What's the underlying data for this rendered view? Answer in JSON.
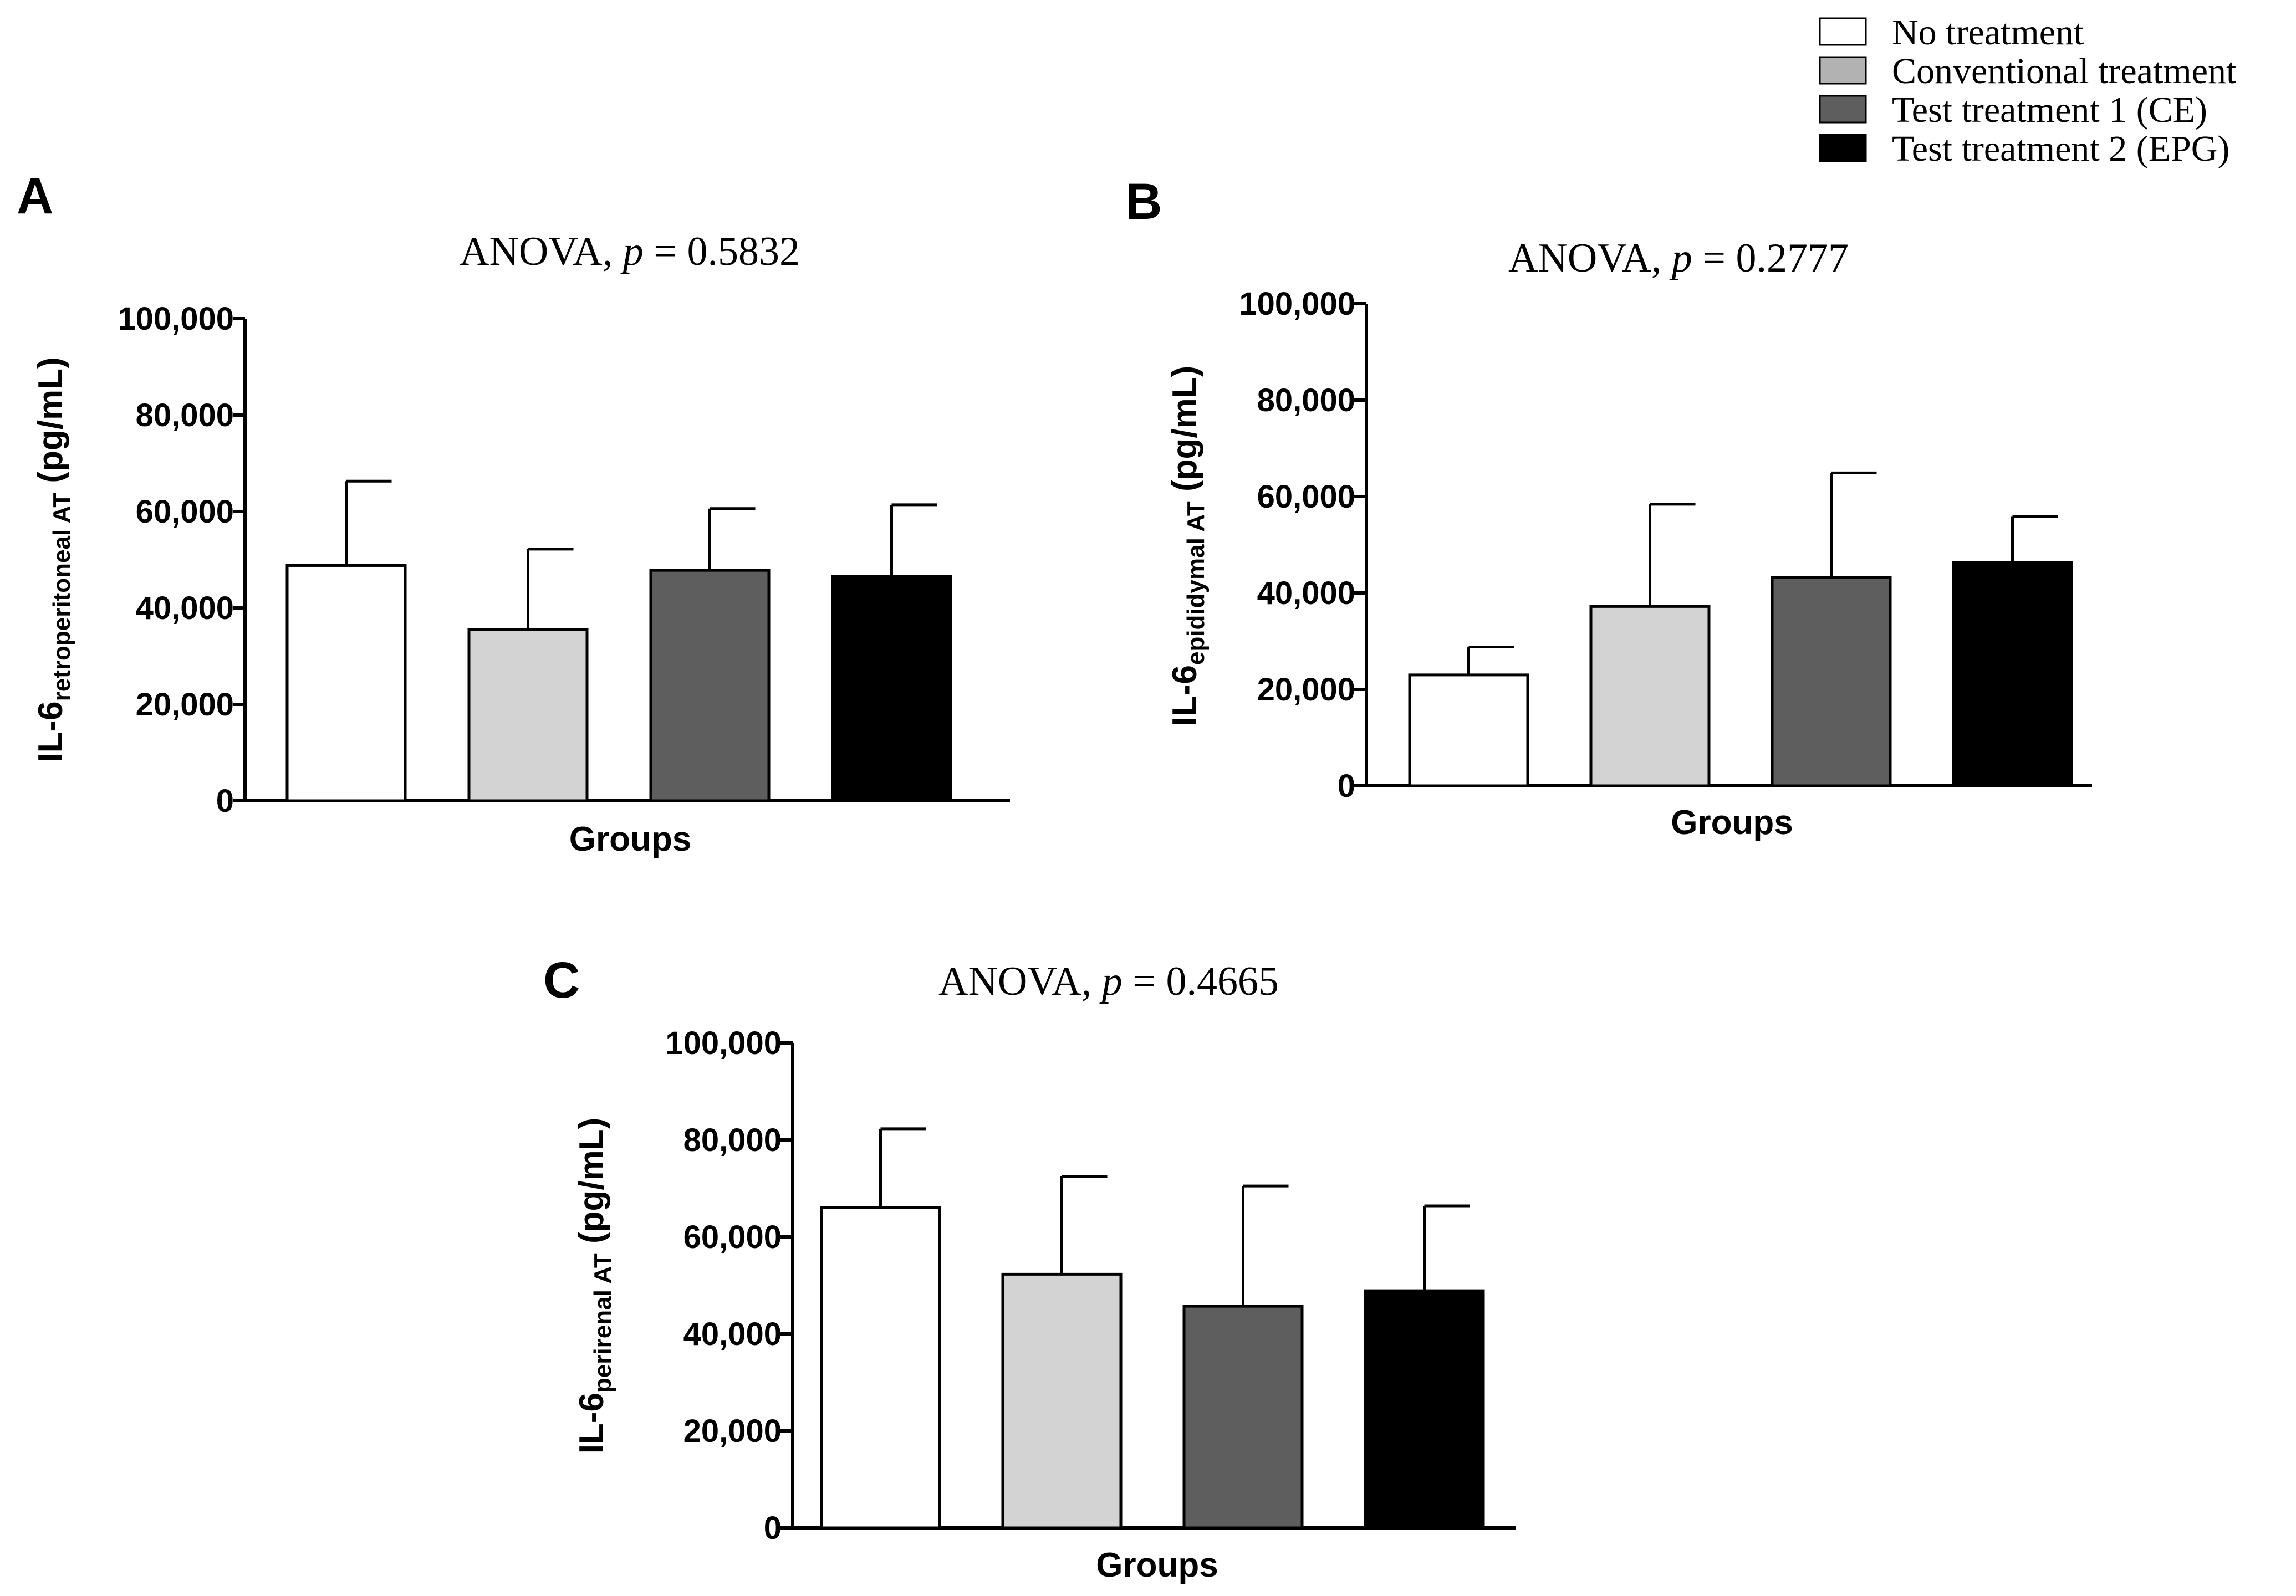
{
  "legend": {
    "items": [
      {
        "label": "No treatment",
        "color": "#ffffff"
      },
      {
        "label": "Conventional treatment",
        "color": "#b2b2b2"
      },
      {
        "label": "Test treatment 1 (CE)",
        "color": "#5e5e5e"
      },
      {
        "label": "Test treatment 2 (EPG)",
        "color": "#000000"
      }
    ]
  },
  "chart_data": [
    {
      "type": "bar",
      "panel": "A",
      "title_prefix": "ANOVA,",
      "title_p": "p",
      "title_value": "= 0.5832",
      "ylabel_main": "IL-6",
      "ylabel_sub": "retroperitoneal AT",
      "ylabel_unit": " (pg/mL)",
      "xlabel": "Groups",
      "ylim": [
        0,
        100000
      ],
      "ytick_labels": [
        "0",
        "20,000",
        "40,000",
        "60,000",
        "80,000",
        "100,000"
      ],
      "ytick_values": [
        0,
        20000,
        40000,
        60000,
        80000,
        100000
      ],
      "categories": [
        "No treatment",
        "Conventional treatment",
        "Test treatment 1 (CE)",
        "Test treatment 2 (EPG)"
      ],
      "values": [
        48800,
        35500,
        47800,
        46500
      ],
      "errors": [
        17500,
        16700,
        12800,
        14900
      ],
      "colors": [
        "#ffffff",
        "#d3d3d3",
        "#5e5e5e",
        "#000000"
      ]
    },
    {
      "type": "bar",
      "panel": "B",
      "title_prefix": "ANOVA,",
      "title_p": "p",
      "title_value": "= 0.2777",
      "ylabel_main": "IL-6",
      "ylabel_sub": "epididymal AT",
      "ylabel_unit": " (pg/mL)",
      "xlabel": "Groups",
      "ylim": [
        0,
        100000
      ],
      "ytick_labels": [
        "0",
        "20,000",
        "40,000",
        "60,000",
        "80,000",
        "100,000"
      ],
      "ytick_values": [
        0,
        20000,
        40000,
        60000,
        80000,
        100000
      ],
      "categories": [
        "No treatment",
        "Conventional treatment",
        "Test treatment 1 (CE)",
        "Test treatment 2 (EPG)"
      ],
      "values": [
        23000,
        37200,
        43200,
        46300
      ],
      "errors": [
        5800,
        21200,
        21700,
        9500
      ],
      "colors": [
        "#ffffff",
        "#d3d3d3",
        "#5e5e5e",
        "#000000"
      ]
    },
    {
      "type": "bar",
      "panel": "C",
      "title_prefix": "ANOVA,",
      "title_p": "p",
      "title_value": "= 0.4665",
      "ylabel_main": "IL-6",
      "ylabel_sub": "perirenal AT",
      "ylabel_unit": " (pg/mL)",
      "xlabel": "Groups",
      "ylim": [
        0,
        100000
      ],
      "ytick_labels": [
        "0",
        "20,000",
        "40,000",
        "60,000",
        "80,000",
        "100,000"
      ],
      "ytick_values": [
        0,
        20000,
        40000,
        60000,
        80000,
        100000
      ],
      "categories": [
        "No treatment",
        "Conventional treatment",
        "Test treatment 1 (CE)",
        "Test treatment 2 (EPG)"
      ],
      "values": [
        66000,
        52300,
        45700,
        48900
      ],
      "errors": [
        16300,
        20200,
        24800,
        17500
      ],
      "colors": [
        "#ffffff",
        "#d3d3d3",
        "#5e5e5e",
        "#000000"
      ]
    }
  ]
}
